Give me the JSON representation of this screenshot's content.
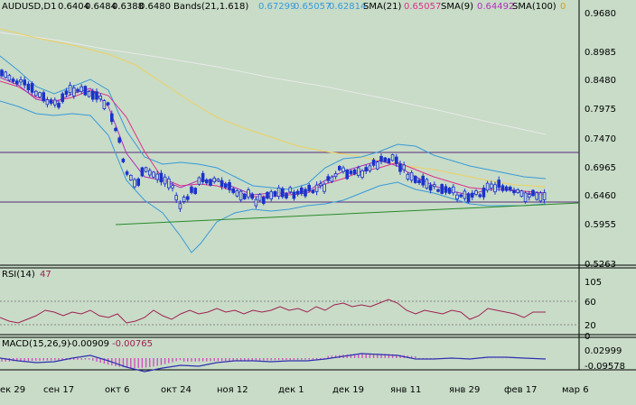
{
  "colors": {
    "background": "#c8dcc8",
    "candles": "#1a33cc",
    "bands": "#3a9ad8",
    "sma21": "#e0308a",
    "sma9": "#b030b8",
    "sma100": "#f0d060",
    "sma200": "#e8e8e8",
    "trendline": "#2a8a2a",
    "hlines": "#5a2a7a",
    "rsi": "#a02050",
    "macd": "#3030b0",
    "macd_hist": "#d050c0"
  },
  "header": {
    "symbol": "AUDUSD,D1",
    "ohlc": [
      "0.6404",
      "0.6484",
      "0.6388",
      "0.6480"
    ],
    "bands_label": "Bands(21,1.618)",
    "bands_values": [
      "0.67299",
      "0.65057",
      "0.62814"
    ],
    "sma21_label": "SMA(21)",
    "sma21_value": "0.65057",
    "sma9_label": "SMA(9)",
    "sma9_value": "0.64492",
    "sma100_label": "SMA(100)",
    "sma100_value": "0"
  },
  "price_axis": [
    "0.9680",
    "0.8985",
    "0.8480",
    "0.7975",
    "0.7470",
    "0.6965",
    "0.6460",
    "0.5955",
    "0.5263"
  ],
  "rsi": {
    "label": "RSI(14)",
    "value": "47",
    "ticks": [
      "105",
      "60",
      "20",
      "0"
    ]
  },
  "macd": {
    "label": "MACD(15,26,9)",
    "values": [
      "-0.00909",
      "-0.00765"
    ],
    "ticks": [
      "0.02999",
      "-0.09578"
    ]
  },
  "time_axis": [
    "ек 29",
    "сен 17",
    "окт 6",
    "окт 24",
    "ноя 12",
    "дек 1",
    "дек 19",
    "янв 11",
    "янв 29",
    "фев 17",
    "мар 6"
  ]
}
